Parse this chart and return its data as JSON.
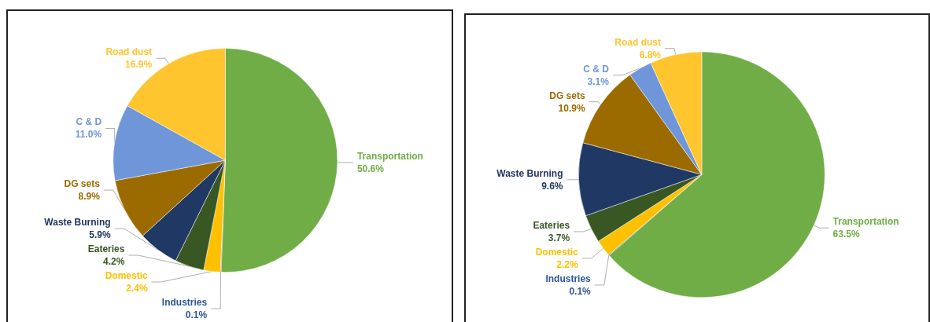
{
  "chart_data": [
    {
      "type": "pie",
      "categories": [
        "Transportation",
        "Industries",
        "Domestic",
        "Eateries",
        "Waste Burning",
        "DG sets",
        "C & D",
        "Road dust"
      ],
      "values": [
        50.6,
        0.1,
        2.4,
        4.2,
        5.9,
        8.9,
        11.0,
        16.9
      ],
      "value_labels": [
        "50.6%",
        "0.1%",
        "2.4%",
        "4.2%",
        "5.9%",
        "8.9%",
        "11.0%",
        "16.9%"
      ],
      "colors": [
        "#70ad47",
        "#2f5597",
        "#ffc000",
        "#385723",
        "#203864",
        "#9c6b00",
        "#6f96d8",
        "#ffc52e"
      ]
    },
    {
      "type": "pie",
      "categories": [
        "Transportation",
        "Industries",
        "Domestic",
        "Eateries",
        "Waste Burning",
        "DG sets",
        "C & D",
        "Road dust"
      ],
      "values": [
        63.5,
        0.1,
        2.2,
        3.7,
        9.6,
        10.9,
        3.1,
        6.8
      ],
      "value_labels": [
        "63.5%",
        "0.1%",
        "2.2%",
        "3.7%",
        "9.6%",
        "10.9%",
        "3.1%",
        "6.8%"
      ],
      "colors": [
        "#70ad47",
        "#2f5597",
        "#ffc000",
        "#385723",
        "#203864",
        "#9c6b00",
        "#6f96d8",
        "#ffc52e"
      ]
    }
  ]
}
